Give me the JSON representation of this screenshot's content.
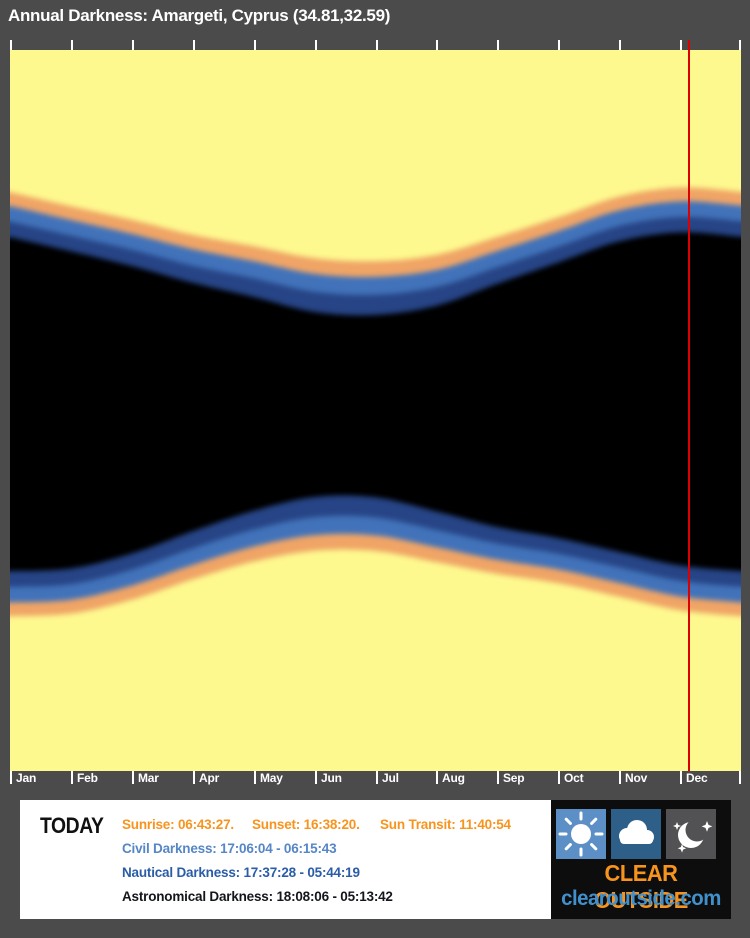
{
  "title": "Annual Darkness: Amargeti, Cyprus (34.81,32.59)",
  "colors": {
    "background": "#4B4B4B",
    "day": "#FEF98F",
    "civil_twilight": "#F0A566",
    "nautical_twilight": "#4273BA",
    "astronomical_twilight": "#274586",
    "night": "#000000",
    "today_line": "#DD0000",
    "sun_text": "#F7941E",
    "civil_text": "#5586C6",
    "nautical_text": "#2B5CA8",
    "astro_text": "#14161C",
    "logo_orange": "#F7941D",
    "logo_blue": "#4190CE"
  },
  "chart_data": {
    "type": "area",
    "title": "Annual Darkness: Amargeti, Cyprus (34.81,32.59)",
    "x_axis": {
      "categories": [
        "Jan",
        "Feb",
        "Mar",
        "Apr",
        "May",
        "Jun",
        "Jul",
        "Aug",
        "Sep",
        "Oct",
        "Nov",
        "Dec"
      ],
      "unit": "month",
      "range": [
        0,
        12
      ]
    },
    "y_axis": {
      "description": "time of day, noon at top to noon next day at bottom",
      "start_hour": 12,
      "end_hour": 36,
      "gridlines": false
    },
    "bands": [
      {
        "name": "daylight",
        "color": "#FEF98F"
      },
      {
        "name": "civil twilight",
        "color": "#F0A566"
      },
      {
        "name": "nautical twilight",
        "color": "#4273BA"
      },
      {
        "name": "astronomical twilight",
        "color": "#274586"
      },
      {
        "name": "astronomical darkness",
        "color": "#000000"
      }
    ],
    "x_months": [
      0,
      1,
      2,
      3,
      4,
      5,
      6,
      7,
      8,
      9,
      10,
      11,
      12
    ],
    "series": [
      {
        "name": "sunset",
        "hours": [
          16.73,
          17.2,
          17.65,
          18.15,
          18.53,
          18.93,
          19.03,
          18.82,
          18.22,
          17.57,
          16.88,
          16.58,
          16.72
        ]
      },
      {
        "name": "civil_dusk",
        "hours": [
          17.19,
          17.66,
          18.12,
          18.63,
          19.03,
          19.45,
          19.55,
          19.32,
          18.69,
          18.03,
          17.34,
          17.04,
          17.18
        ]
      },
      {
        "name": "nautical_dusk",
        "hours": [
          17.71,
          18.18,
          18.65,
          19.18,
          19.6,
          20.05,
          20.15,
          19.89,
          19.23,
          18.55,
          17.86,
          17.56,
          17.7
        ]
      },
      {
        "name": "astro_dusk",
        "hours": [
          18.23,
          18.7,
          19.19,
          19.75,
          20.22,
          20.72,
          20.82,
          20.51,
          19.78,
          19.07,
          18.37,
          18.07,
          18.22
        ]
      },
      {
        "name": "astro_dawn",
        "hours": [
          5.35,
          5.26,
          4.76,
          4.02,
          3.34,
          2.88,
          2.89,
          3.36,
          3.88,
          4.25,
          4.71,
          5.16,
          5.35
        ]
      },
      {
        "name": "nautical_dawn",
        "hours": [
          5.87,
          5.78,
          5.3,
          4.59,
          3.96,
          3.55,
          3.56,
          3.98,
          4.43,
          4.77,
          5.22,
          5.67,
          5.87
        ]
      },
      {
        "name": "civil_dawn",
        "hours": [
          6.39,
          6.3,
          5.83,
          5.14,
          4.53,
          4.15,
          4.16,
          4.55,
          4.97,
          5.29,
          5.74,
          6.19,
          6.39
        ]
      },
      {
        "name": "sunrise",
        "hours": [
          6.85,
          6.76,
          6.3,
          5.62,
          5.03,
          4.67,
          4.68,
          5.05,
          5.44,
          5.75,
          6.2,
          6.65,
          6.85
        ]
      }
    ],
    "today_marker": {
      "month_fraction": 11.15,
      "color": "#DD0000"
    }
  },
  "today_panel": {
    "label": "TODAY",
    "sunrise": "Sunrise: 06:43:27.",
    "sunset": "Sunset: 16:38:20.",
    "sun_transit": "Sun Transit: 11:40:54",
    "civil": "Civil Darkness: 17:06:04 - 06:15:43",
    "nautical": "Nautical Darkness: 17:37:28 - 05:44:19",
    "astronomical": "Astronomical Darkness: 18:08:06 - 05:13:42"
  },
  "logo": {
    "name": "CLEAR OUTSIDE",
    "domain": "clearoutside.com",
    "icons": [
      "sun-icon",
      "cloud-icon",
      "moon-stars-icon"
    ]
  }
}
